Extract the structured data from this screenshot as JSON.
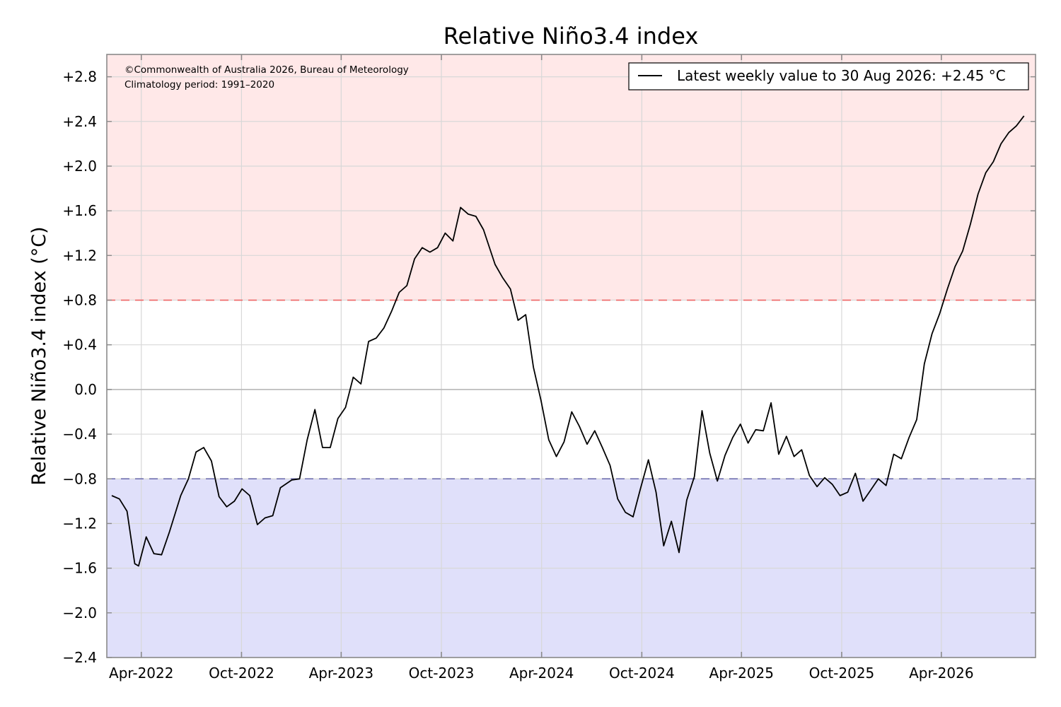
{
  "chart_data": {
    "type": "line",
    "title": "Relative Niño3.4 index",
    "ylabel": "Relative Niño3.4 index (°C)",
    "xlabel": "",
    "ylim": [
      -2.4,
      3.0
    ],
    "y_ticks": [
      2.8,
      2.4,
      2.0,
      1.6,
      1.2,
      0.8,
      0.4,
      0.0,
      -0.4,
      -0.8,
      -1.2,
      -1.6,
      -2.0,
      -2.4
    ],
    "y_tick_labels": [
      "+2.8",
      "+2.4",
      "+2.0",
      "+1.6",
      "+1.2",
      "+0.8",
      "+0.4",
      "0.0",
      "−0.4",
      "−0.8",
      "−1.2",
      "−1.6",
      "−2.0",
      "−2.4"
    ],
    "x_range": [
      "2022-01-28",
      "2026-09-20"
    ],
    "x_ticks": [
      "2022-04-01",
      "2022-10-01",
      "2023-04-01",
      "2023-10-01",
      "2024-04-01",
      "2024-10-01",
      "2025-04-01",
      "2025-10-01",
      "2026-04-01"
    ],
    "x_tick_labels": [
      "Apr-2022",
      "Oct-2022",
      "Apr-2023",
      "Oct-2023",
      "Apr-2024",
      "Oct-2024",
      "Apr-2025",
      "Oct-2025",
      "Apr-2026"
    ],
    "grid": true,
    "thresholds": [
      {
        "value": 0.8,
        "color": "#ee6666",
        "style": "dashed"
      },
      {
        "value": -0.8,
        "color": "#6666aa",
        "style": "dashed"
      }
    ],
    "zero_line": 0.0,
    "shading": {
      "above": 0.8,
      "above_color": "#ffe8e8",
      "below": -0.8,
      "below_color": "#e0e0fa"
    },
    "legend": {
      "position": "top-right",
      "label": "Latest weekly value to 30 Aug 2026: +2.45 °C"
    },
    "annotations": [
      "©Commonwealth of Australia 2026, Bureau of Meteorology",
      "Climatology period: 1991–2020"
    ],
    "series": [
      {
        "color": "#000000",
        "x": [
          "2022-02-06",
          "2022-02-20",
          "2022-03-06",
          "2022-03-20",
          "2022-03-27",
          "2022-04-10",
          "2022-04-24",
          "2022-05-08",
          "2022-05-22",
          "2022-06-12",
          "2022-06-26",
          "2022-07-10",
          "2022-07-24",
          "2022-08-07",
          "2022-08-21",
          "2022-09-04",
          "2022-09-18",
          "2022-10-02",
          "2022-10-16",
          "2022-10-30",
          "2022-11-13",
          "2022-11-27",
          "2022-12-11",
          "2023-01-01",
          "2023-01-15",
          "2023-01-29",
          "2023-02-12",
          "2023-02-26",
          "2023-03-12",
          "2023-03-26",
          "2023-04-09",
          "2023-04-23",
          "2023-05-07",
          "2023-05-21",
          "2023-06-04",
          "2023-06-18",
          "2023-07-02",
          "2023-07-16",
          "2023-07-30",
          "2023-08-13",
          "2023-08-27",
          "2023-09-10",
          "2023-09-24",
          "2023-10-08",
          "2023-10-22",
          "2023-11-05",
          "2023-11-19",
          "2023-12-03",
          "2023-12-17",
          "2024-01-07",
          "2024-01-21",
          "2024-02-04",
          "2024-02-18",
          "2024-03-03",
          "2024-03-17",
          "2024-03-31",
          "2024-04-14",
          "2024-04-28",
          "2024-05-12",
          "2024-05-26",
          "2024-06-09",
          "2024-06-23",
          "2024-07-07",
          "2024-07-21",
          "2024-08-04",
          "2024-08-18",
          "2024-09-01",
          "2024-09-15",
          "2024-09-29",
          "2024-10-13",
          "2024-10-27",
          "2024-11-10",
          "2024-11-24",
          "2024-12-08",
          "2024-12-22",
          "2025-01-05",
          "2025-01-19",
          "2025-02-02",
          "2025-02-16",
          "2025-03-02",
          "2025-03-16",
          "2025-03-30",
          "2025-04-13",
          "2025-04-27",
          "2025-05-11",
          "2025-05-25",
          "2025-06-08",
          "2025-06-22",
          "2025-07-06",
          "2025-07-20",
          "2025-08-03",
          "2025-08-17",
          "2025-08-31",
          "2025-09-14",
          "2025-09-28",
          "2025-10-12",
          "2025-10-26",
          "2025-11-09",
          "2025-11-23",
          "2025-12-07",
          "2025-12-21",
          "2026-01-04",
          "2026-01-18",
          "2026-02-01",
          "2026-02-15",
          "2026-03-01",
          "2026-03-15",
          "2026-03-29",
          "2026-04-12",
          "2026-04-26",
          "2026-05-10",
          "2026-05-24",
          "2026-06-07",
          "2026-06-21",
          "2026-07-05",
          "2026-07-19",
          "2026-08-02",
          "2026-08-16",
          "2026-08-30"
        ],
        "y": [
          -0.95,
          -0.98,
          -1.09,
          -1.56,
          -1.58,
          -1.32,
          -1.47,
          -1.48,
          -1.28,
          -0.95,
          -0.8,
          -0.56,
          -0.52,
          -0.64,
          -0.96,
          -1.05,
          -1.0,
          -0.89,
          -0.95,
          -1.21,
          -1.15,
          -1.13,
          -0.88,
          -0.81,
          -0.8,
          -0.45,
          -0.18,
          -0.52,
          -0.52,
          -0.26,
          -0.16,
          0.11,
          0.05,
          0.43,
          0.46,
          0.55,
          0.7,
          0.87,
          0.93,
          1.17,
          1.27,
          1.23,
          1.27,
          1.4,
          1.33,
          1.63,
          1.57,
          1.55,
          1.43,
          1.12,
          1.0,
          0.9,
          0.62,
          0.67,
          0.2,
          -0.1,
          -0.45,
          -0.6,
          -0.47,
          -0.2,
          -0.33,
          -0.49,
          -0.37,
          -0.52,
          -0.68,
          -0.98,
          -1.1,
          -1.14,
          -0.88,
          -0.63,
          -0.92,
          -1.4,
          -1.18,
          -1.46,
          -0.99,
          -0.78,
          -0.19,
          -0.57,
          -0.82,
          -0.59,
          -0.43,
          -0.31,
          -0.48,
          -0.36,
          -0.37,
          -0.12,
          -0.58,
          -0.42,
          -0.6,
          -0.54,
          -0.77,
          -0.87,
          -0.79,
          -0.85,
          -0.95,
          -0.92,
          -0.75,
          -1.0,
          -0.9,
          -0.8,
          -0.86,
          -0.58,
          -0.62,
          -0.43,
          -0.27,
          0.23,
          0.5,
          0.68,
          0.9,
          1.1,
          1.24,
          1.48,
          1.75,
          1.94,
          2.04,
          2.2,
          2.3,
          2.36,
          2.45
        ]
      }
    ]
  }
}
